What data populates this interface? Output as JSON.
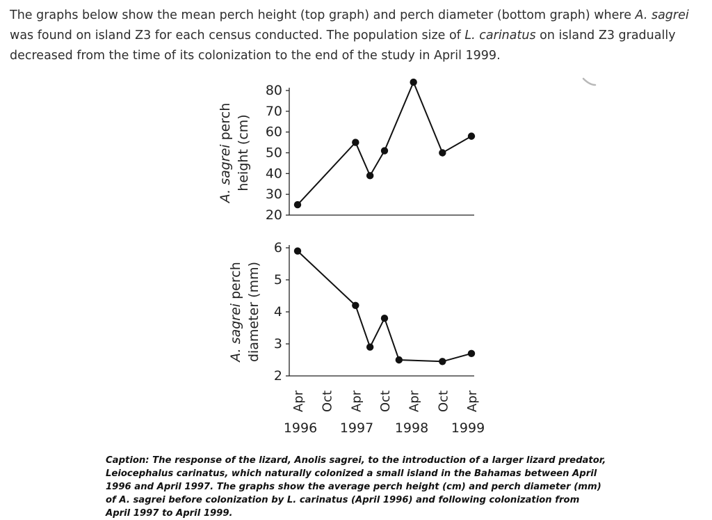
{
  "intro": {
    "seg1": "The graphs below show the mean perch height (top graph) and perch diameter (bottom graph) where ",
    "species1": "A. sagrei",
    "seg2": " was found on island Z3 for each census conducted. The population size of ",
    "species2": "L. carinatus",
    "seg3": " on island Z3 gradually decreased from the time of its colonization to the end of the study in April 1999."
  },
  "chart_data": [
    {
      "type": "line",
      "ylabel_species": "A. sagrei",
      "ylabel_line1_rest": " perch",
      "ylabel_line2": "height (cm)",
      "yticks": [
        80,
        70,
        60,
        50,
        40,
        30,
        20
      ],
      "ylim": [
        20,
        80
      ],
      "x_ticks": [
        "Apr",
        "Oct",
        "Apr",
        "Oct",
        "Apr",
        "Oct",
        "Apr"
      ],
      "x_years": [
        "1996",
        "1997",
        "1998",
        "1999"
      ],
      "points": [
        {
          "x": "Apr 1996",
          "y": 25
        },
        {
          "x": "Apr 1997",
          "y": 55
        },
        {
          "x": "Jul 1997",
          "y": 39
        },
        {
          "x": "Oct 1997",
          "y": 51
        },
        {
          "x": "Apr 1998",
          "y": 84
        },
        {
          "x": "Oct 1998",
          "y": 50
        },
        {
          "x": "Apr 1999",
          "y": 58
        }
      ],
      "grid": false
    },
    {
      "type": "line",
      "ylabel_species": "A. sagrei",
      "ylabel_line1_rest": " perch",
      "ylabel_line2": "diameter (mm)",
      "yticks": [
        6,
        5,
        4,
        3,
        2
      ],
      "ylim": [
        2,
        6
      ],
      "x_ticks": [
        "Apr",
        "Oct",
        "Apr",
        "Oct",
        "Apr",
        "Oct",
        "Apr"
      ],
      "x_years": [
        "1996",
        "1997",
        "1998",
        "1999"
      ],
      "points": [
        {
          "x": "Apr 1996",
          "y": 5.9
        },
        {
          "x": "Apr 1997",
          "y": 4.2
        },
        {
          "x": "Jul 1997",
          "y": 2.9
        },
        {
          "x": "Oct 1997",
          "y": 3.8
        },
        {
          "x": "Jan 1998",
          "y": 2.5
        },
        {
          "x": "Oct 1998",
          "y": 2.45
        },
        {
          "x": "Apr 1999",
          "y": 2.7
        }
      ],
      "grid": false
    }
  ],
  "caption": {
    "text": "Caption: The response of the lizard, Anolis sagrei, to the introduction of a larger lizard predator, Leiocephalus carinatus, which naturally colonized a small island in the Bahamas between April 1996 and April 1997. The graphs show the average perch height (cm) and perch diameter (mm) of A. sagrei before colonization by L. carinatus (April 1996) and following colonization from April 1997 to April 1999."
  }
}
